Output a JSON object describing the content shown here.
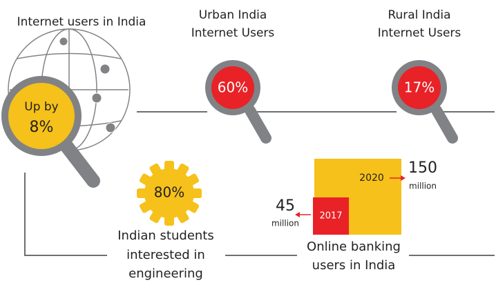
{
  "header": {
    "title": "Internet users in India"
  },
  "growth": {
    "prefix": "Up by",
    "value": "8%"
  },
  "urban": {
    "line1": "Urban India",
    "line2": "Internet Users",
    "value": "60%"
  },
  "rural": {
    "line1": "Rural India",
    "line2": "Internet Users",
    "value": "17%"
  },
  "students": {
    "value": "80%",
    "lines": [
      "Indian students",
      "interested in",
      "engineering"
    ]
  },
  "banking": {
    "year_new": "2020",
    "value_new": "150",
    "unit_new": "million",
    "year_old": "2017",
    "value_old": "45",
    "unit_old": "million",
    "lines": [
      "Online banking",
      "users in India"
    ]
  }
}
